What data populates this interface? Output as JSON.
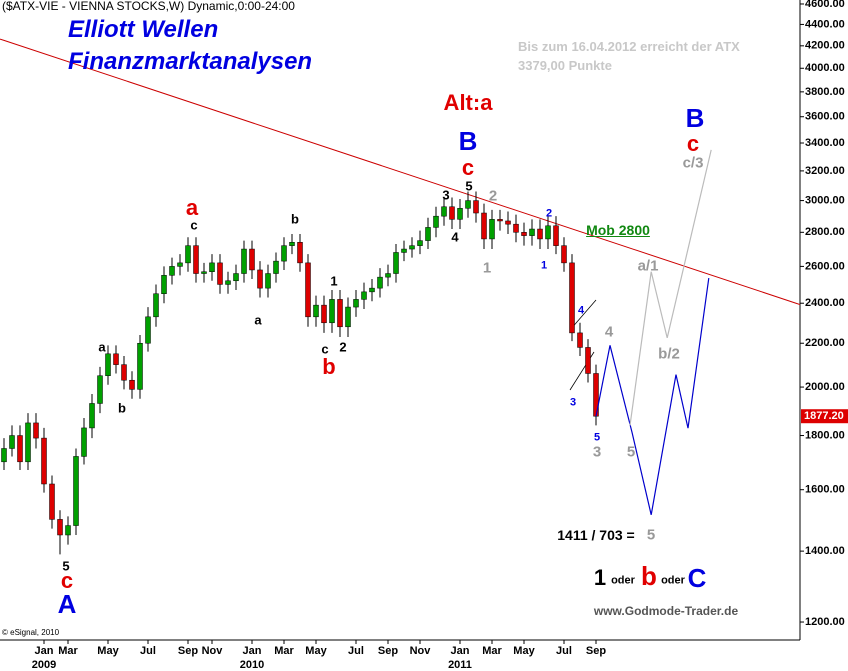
{
  "chart_data": {
    "type": "candlestick",
    "log_y": true,
    "up_color": "#00a000",
    "down_color": "#dd0000",
    "wick_color": "#000000",
    "ylim": [
      1154,
      4640
    ],
    "yticks": [
      {
        "value": 1200,
        "label": "1200.00"
      },
      {
        "value": 1400,
        "label": "1400.00"
      },
      {
        "value": 1600,
        "label": "1600.00"
      },
      {
        "value": 1800,
        "label": "1800.00"
      },
      {
        "value": 2000,
        "label": "2000.00"
      },
      {
        "value": 2200,
        "label": "2200.00"
      },
      {
        "value": 2400,
        "label": "2400.00"
      },
      {
        "value": 2600,
        "label": "2600.00"
      },
      {
        "value": 2800,
        "label": "2800.00"
      },
      {
        "value": 3000,
        "label": "3000.00"
      },
      {
        "value": 3200,
        "label": "3200.00"
      },
      {
        "value": 3400,
        "label": "3400.00"
      },
      {
        "value": 3600,
        "label": "3600.00"
      },
      {
        "value": 3800,
        "label": "3800.00"
      },
      {
        "value": 4000,
        "label": "4000.00"
      },
      {
        "value": 4200,
        "label": "4200.00"
      },
      {
        "value": 4400,
        "label": "4400.00"
      },
      {
        "value": 4600,
        "label": "4600.00"
      }
    ],
    "categories": [
      null,
      null,
      null,
      null,
      null,
      "Jan",
      null,
      null,
      "Mar",
      null,
      null,
      null,
      null,
      "May",
      null,
      null,
      null,
      null,
      "Jul",
      null,
      null,
      null,
      null,
      "Sep",
      null,
      null,
      "Nov",
      null,
      null,
      null,
      null,
      "Jan",
      null,
      null,
      null,
      "Mar",
      null,
      null,
      null,
      "May",
      null,
      null,
      null,
      null,
      "Jul",
      null,
      null,
      null,
      "Sep",
      null,
      null,
      null,
      "Nov",
      null,
      null,
      null,
      null,
      "Jan",
      null,
      null,
      null,
      "Mar",
      null,
      null,
      null,
      "May",
      null,
      null,
      null,
      null,
      "Jul",
      null,
      null,
      null,
      "Sep",
      null,
      null,
      null,
      null,
      null,
      null,
      null,
      null,
      null,
      null,
      null,
      null,
      null,
      null,
      null,
      null,
      null,
      null,
      null,
      null,
      null,
      null,
      null,
      null,
      null
    ],
    "years": [
      "2009",
      "2010",
      "2011"
    ],
    "open": [
      1700,
      1750,
      1800,
      1700,
      1850,
      1790,
      1620,
      1500,
      1450,
      1480,
      1720,
      1830,
      1930,
      2050,
      2150,
      2100,
      2030,
      1990,
      2200,
      2330,
      2450,
      2550,
      2600,
      2620,
      2720,
      2560,
      2570,
      2620,
      2500,
      2520,
      2560,
      2700,
      2580,
      2480,
      2560,
      2630,
      2720,
      2740,
      2620,
      2330,
      2390,
      2300,
      2420,
      2280,
      2380,
      2420,
      2460,
      2480,
      2540,
      2560,
      2680,
      2700,
      2720,
      2750,
      2830,
      2900,
      2960,
      2880,
      2950,
      3000,
      2920,
      2760,
      2880,
      2870,
      2850,
      2800,
      2780,
      2820,
      2760,
      2840,
      2720,
      2620,
      2250,
      2180,
      2060,
      null,
      null,
      null,
      null,
      null,
      null,
      null,
      null,
      null,
      null,
      null,
      null,
      null,
      null,
      null,
      null,
      null,
      null,
      null,
      null,
      null,
      null,
      null,
      null,
      null
    ],
    "high": [
      1790,
      1840,
      1840,
      1890,
      1890,
      1830,
      1650,
      1530,
      1510,
      1750,
      1870,
      1970,
      2090,
      2190,
      2190,
      2140,
      2070,
      2240,
      2380,
      2500,
      2600,
      2650,
      2670,
      2770,
      2770,
      2620,
      2670,
      2670,
      2570,
      2610,
      2750,
      2750,
      2630,
      2610,
      2680,
      2770,
      2790,
      2790,
      2670,
      2440,
      2440,
      2470,
      2470,
      2430,
      2470,
      2510,
      2530,
      2590,
      2610,
      2730,
      2750,
      2770,
      2810,
      2890,
      2960,
      3020,
      3020,
      3010,
      3060,
      3060,
      2980,
      2940,
      2940,
      2930,
      2910,
      2860,
      2880,
      2880,
      2900,
      2900,
      2770,
      2670,
      2300,
      2220,
      2100,
      null,
      null,
      null,
      null,
      null,
      null,
      null,
      null,
      null,
      null,
      null,
      null,
      null,
      null,
      null,
      null,
      null,
      null,
      null,
      null,
      null,
      null,
      null,
      null,
      null
    ],
    "low": [
      1670,
      1720,
      1670,
      1670,
      1750,
      1590,
      1470,
      1390,
      1420,
      1450,
      1690,
      1790,
      1890,
      2010,
      2060,
      1990,
      1950,
      1950,
      2160,
      2280,
      2400,
      2500,
      2550,
      2570,
      2510,
      2510,
      2520,
      2450,
      2450,
      2470,
      2510,
      2530,
      2430,
      2430,
      2510,
      2580,
      2670,
      2570,
      2280,
      2280,
      2250,
      2250,
      2230,
      2230,
      2330,
      2370,
      2410,
      2430,
      2490,
      2510,
      2630,
      2650,
      2670,
      2700,
      2770,
      2840,
      2820,
      2820,
      2890,
      2860,
      2700,
      2700,
      2810,
      2790,
      2740,
      2720,
      2720,
      2700,
      2700,
      2670,
      2570,
      2210,
      2140,
      2020,
      1840,
      null,
      null,
      null,
      null,
      null,
      null,
      null,
      null,
      null,
      null,
      null,
      null,
      null,
      null,
      null,
      null,
      null,
      null,
      null,
      null,
      null,
      null,
      null,
      null,
      null
    ],
    "close": [
      1750,
      1800,
      1700,
      1850,
      1790,
      1620,
      1500,
      1450,
      1480,
      1720,
      1830,
      1930,
      2050,
      2150,
      2100,
      2030,
      1990,
      2200,
      2330,
      2450,
      2550,
      2600,
      2620,
      2720,
      2560,
      2570,
      2620,
      2500,
      2520,
      2560,
      2700,
      2580,
      2480,
      2560,
      2630,
      2720,
      2740,
      2620,
      2330,
      2390,
      2300,
      2420,
      2280,
      2380,
      2420,
      2460,
      2480,
      2540,
      2560,
      2680,
      2700,
      2720,
      2750,
      2830,
      2900,
      2960,
      2880,
      2950,
      3000,
      2920,
      2760,
      2880,
      2870,
      2850,
      2800,
      2780,
      2820,
      2760,
      2840,
      2720,
      2620,
      2250,
      2180,
      2060,
      1877.2,
      null,
      null,
      null,
      null,
      null,
      null,
      null,
      null,
      null,
      null,
      null,
      null,
      null,
      null,
      null,
      null,
      null,
      null,
      null,
      null,
      null,
      null,
      null,
      null,
      null
    ],
    "last_value_label": "1877.20",
    "last_label_color": "#dd0000",
    "trendline": {
      "color": "#cc0000",
      "x": [
        0,
        99
      ],
      "values": [
        4250,
        2400
      ]
    },
    "projections": [
      {
        "color": "#0000cc",
        "x": [
          74,
          75.75,
          78.5,
          80.9,
          84,
          85.5,
          88.1
        ],
        "values": [
          1877.2,
          2190,
          1813,
          1515,
          2055,
          1829,
          2535
        ]
      },
      {
        "color": "#bbbbbb",
        "x": [
          78.25,
          80.9,
          82.9,
          88.4
        ],
        "values": [
          1840,
          2570,
          2226,
          3350
        ]
      }
    ],
    "annotations": [
      "($ATX-VIE - VIENNA STOCKS,W) Dynamic,0:00-24:00",
      "Elliott Wellen",
      "Finanzmarktanalysen",
      "Bis zum 16.04.2012 erreicht der ATX",
      "3379,00 Punkte",
      "Alt:a",
      "B",
      "c",
      "5",
      "3",
      "4",
      "2",
      "1",
      "a",
      "c",
      "b",
      "a",
      "1",
      "c",
      "2",
      "b",
      "a",
      "b",
      "5",
      "c",
      "A",
      "2",
      "1",
      "4",
      "4",
      "3",
      "5",
      "3",
      "Mob 2800",
      "a/1",
      "b/2",
      "c/3",
      "c",
      "B",
      "5",
      "1411 / 703 =",
      "5",
      "1",
      "oder",
      "b",
      "oder",
      "C",
      "www.Godmode-Trader.de",
      "© eSignal, 2010"
    ]
  }
}
